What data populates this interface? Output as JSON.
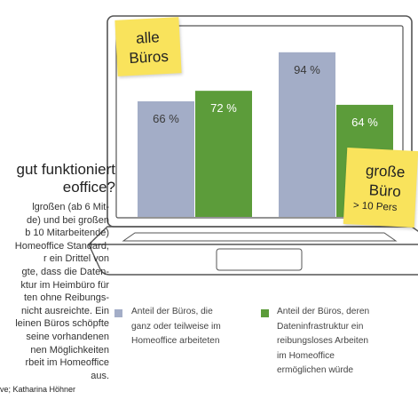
{
  "article": {
    "heading": "gut funktioniert\neoffice?",
    "body": "lgroßen (ab 6 Mit-\nde) und bei großen\nb 10 Mitarbeitende)\nHomeoffice Standard,\nr ein Drittel von\ngte, dass die Daten-\nktur im Heimbüro für\nten ohne Reibungs-\nnicht ausreichte. Ein\nleinen Büros schöpfte\nseine vorhandenen\nnen Möglichkeiten\nrbeit im Homeoffice\naus.",
    "credit": "ve; Katharina Höhner"
  },
  "notes": {
    "all_offices": {
      "line1": "alle",
      "line2": "Büros"
    },
    "large_offices": {
      "line1": "große",
      "line2": "Büro",
      "line3": "> 10 Pers"
    }
  },
  "colors": {
    "series_a": "#a3adc7",
    "series_b": "#5c9c3a",
    "sticky_note": "#f9e35c",
    "laptop_outline": "#555555"
  },
  "chart_data": {
    "type": "bar",
    "categories": [
      "alle Büros",
      "große Büros > 10 Personen"
    ],
    "series": [
      {
        "name": "Anteil der Büros, die ganz oder teilweise im Homeoffice arbeiteten",
        "values": [
          66,
          94
        ],
        "labels": [
          "66 %",
          "94 %"
        ],
        "color": "#a3adc7"
      },
      {
        "name": "Anteil der Büros, deren Dateninfrastruktur ein reibungsloses Arbeiten im Homeoffice ermöglichen würde",
        "values": [
          72,
          64
        ],
        "labels": [
          "72 %",
          "64 %"
        ],
        "color": "#5c9c3a"
      }
    ],
    "ylim": [
      0,
      100
    ],
    "grid": false,
    "legend_position": "bottom",
    "legend": [
      "Anteil der Büros, die\nganz oder teilweise im\nHomeoffice arbeiteten",
      "Anteil der Büros, deren\nDateninfrastruktur ein\nreibungsloses Arbeiten\nim Homeoffice\nermöglichen würde"
    ]
  }
}
